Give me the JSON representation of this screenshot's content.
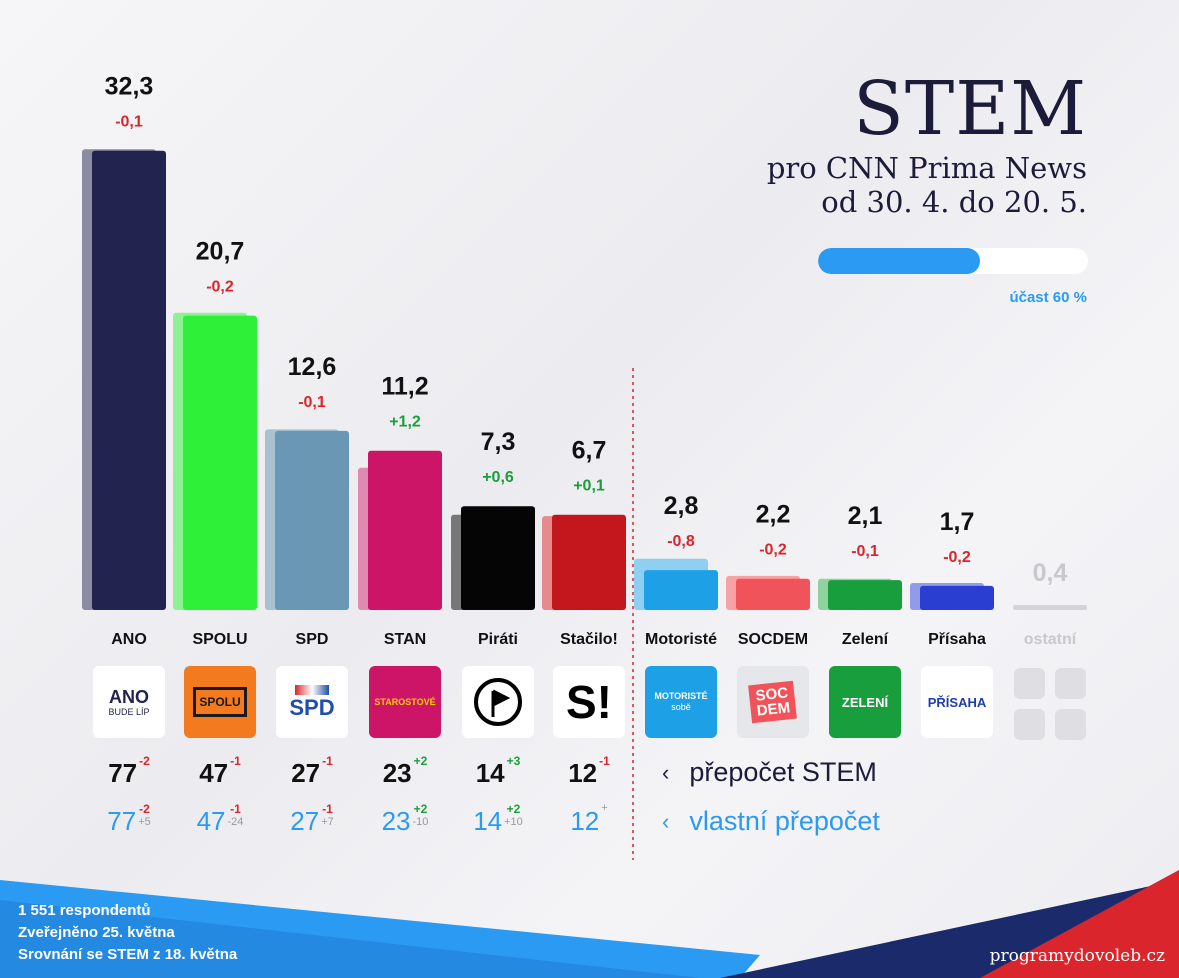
{
  "header": {
    "title": "STEM",
    "subtitle1": "pro CNN Prima News",
    "subtitle2": "od 30. 4. do 20. 5.",
    "turnout_label": "účast 60 %",
    "turnout_value": 60
  },
  "colors": {
    "accent": "#2b9af3",
    "negative": "#d9252b",
    "positive": "#1a9e3a"
  },
  "chart_data": {
    "type": "bar",
    "categories": [
      "ANO",
      "SPOLU",
      "SPD",
      "STAN",
      "Piráti",
      "Stačilo!",
      "Motoristé",
      "SOCDEM",
      "Zelení",
      "Přísaha",
      "ostatní"
    ],
    "values": [
      32.3,
      20.7,
      12.6,
      11.2,
      7.3,
      6.7,
      2.8,
      2.2,
      2.1,
      1.7,
      0.4
    ],
    "value_labels": [
      "32,3",
      "20,7",
      "12,6",
      "11,2",
      "7,3",
      "6,7",
      "2,8",
      "2,2",
      "2,1",
      "1,7",
      "0,4"
    ],
    "previous_values": [
      32.4,
      20.9,
      12.7,
      10.0,
      6.7,
      6.6,
      3.6,
      2.4,
      2.2,
      1.9,
      null
    ],
    "change_labels": [
      "-0,1",
      "-0,2",
      "-0,1",
      "+1,2",
      "+0,6",
      "+0,1",
      "-0,8",
      "-0,2",
      "-0,1",
      "-0,2",
      ""
    ],
    "colors": [
      "#23234f",
      "#2ff038",
      "#6a98b4",
      "#cc1566",
      "#050505",
      "#c4171d",
      "#1ea0e6",
      "#f0545a",
      "#189e3c",
      "#2a3fd2",
      "#d3d3d8"
    ],
    "previous_colors": [
      "#8b8ba2",
      "#8ef294",
      "#a9c2d2",
      "#e08ab2",
      "#777777",
      "#e58a8d",
      "#8fcff1",
      "#f7a3a6",
      "#8ed39e",
      "#8f9ce7",
      "#d3d3d8"
    ],
    "ylim": [
      0,
      33
    ],
    "threshold_after": "Stačilo!",
    "grid": false
  },
  "logos": [
    {
      "party": "ANO",
      "text": "ANO",
      "sub": "BUDE LÍP",
      "bg": "#ffffff",
      "fg": "#23234f"
    },
    {
      "party": "SPOLU",
      "text": "SPOLU",
      "bg": "#f47a1f",
      "fg": "#1a1a1a"
    },
    {
      "party": "SPD",
      "text": "SPD",
      "bg": "#ffffff",
      "fg": "#1f4fa8"
    },
    {
      "party": "STAN",
      "text": "STAROSTOVÉ",
      "bg": "#cc1566",
      "fg": "#f5d000"
    },
    {
      "party": "Piráti",
      "text": "",
      "bg": "#ffffff",
      "fg": "#000000"
    },
    {
      "party": "Stačilo!",
      "text": "S!",
      "bg": "#ffffff",
      "fg": "#000000"
    },
    {
      "party": "Motoristé",
      "text": "MOTORISTÉ",
      "sub": "sobě",
      "bg": "#1ea0e6",
      "fg": "#ffffff"
    },
    {
      "party": "SOCDEM",
      "text": "SOC",
      "text2": "DEM",
      "bg": "#e5e7ea",
      "fg": "#ffffff"
    },
    {
      "party": "Zelení",
      "text": "ZELENÍ",
      "bg": "#189e3c",
      "fg": "#ffffff"
    },
    {
      "party": "Přísaha",
      "text": "PŘÍSAHA",
      "bg": "#ffffff",
      "fg": "#1f3fa8"
    }
  ],
  "seats": {
    "stem": [
      {
        "value": "77",
        "delta": "-2"
      },
      {
        "value": "47",
        "delta": "-1"
      },
      {
        "value": "27",
        "delta": "-1"
      },
      {
        "value": "23",
        "delta": "+2"
      },
      {
        "value": "14",
        "delta": "+3"
      },
      {
        "value": "12",
        "delta": "-1"
      }
    ],
    "own": [
      {
        "value": "77",
        "delta": "-2",
        "delta2": "+5"
      },
      {
        "value": "47",
        "delta": "-1",
        "delta2": "-24"
      },
      {
        "value": "27",
        "delta": "-1",
        "delta2": "+7"
      },
      {
        "value": "23",
        "delta": "+2",
        "delta2": "-10"
      },
      {
        "value": "14",
        "delta": "+2",
        "delta2": "+10"
      },
      {
        "value": "12",
        "delta": "",
        "delta2": "+"
      }
    ],
    "legend_stem": "přepočet STEM",
    "legend_own": "vlastní přepočet",
    "chevron": "‹"
  },
  "footer": {
    "line1": "1 551 respondentů",
    "line2": "Zveřejněno 25. května",
    "line3": "Srovnání se STEM z 18. května",
    "site": "programydovoleb.cz"
  }
}
